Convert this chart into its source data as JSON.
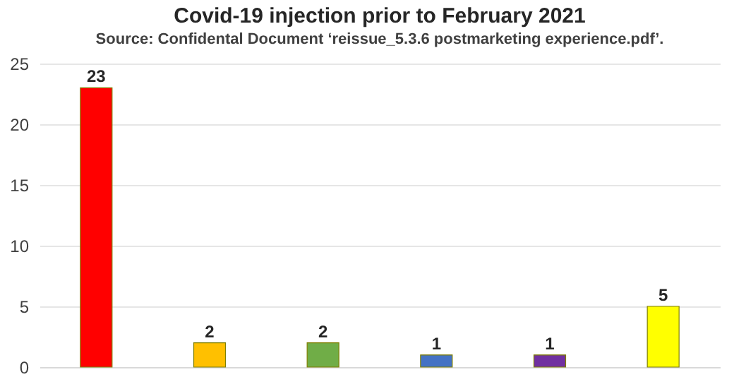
{
  "chart_data": {
    "type": "bar",
    "title": "Covid-19 injection prior to February 2021",
    "subtitle": "Source: Confidental Document ‘reissue_5.3.6 postmarketing experience.pdf’.",
    "categories": [
      null,
      null,
      null,
      null,
      null,
      null
    ],
    "values": [
      23,
      2,
      2,
      1,
      1,
      5
    ],
    "colors": [
      "#ff0000",
      "#ffc000",
      "#70ad47",
      "#4472c4",
      "#7030a0",
      "#ffff00"
    ],
    "ylim": [
      0,
      25
    ],
    "yticks": [
      0,
      5,
      10,
      15,
      20,
      25
    ],
    "grid": "y",
    "data_labels": true,
    "tick_labels": "y"
  }
}
